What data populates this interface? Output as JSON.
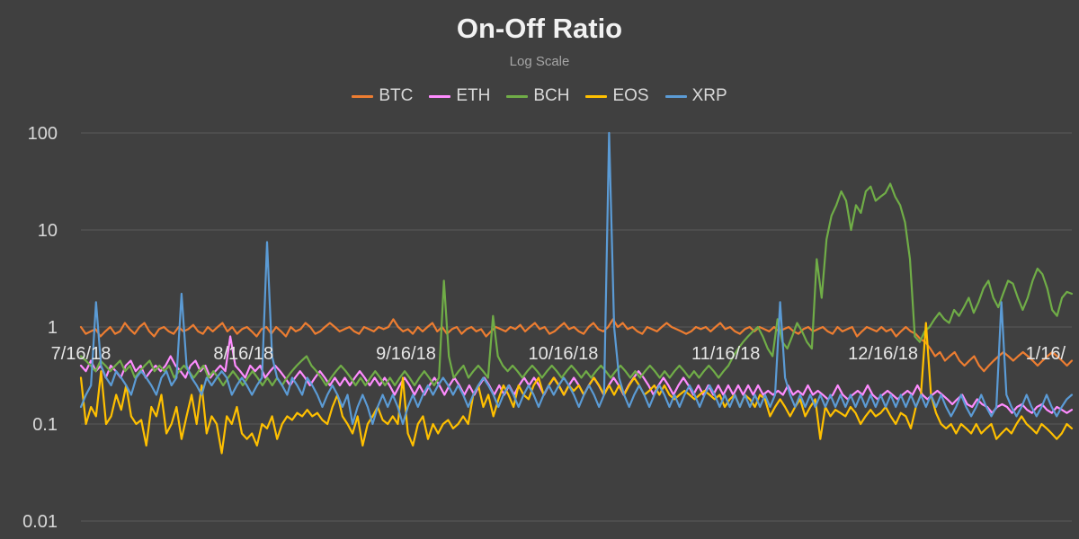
{
  "chart_data": {
    "type": "line",
    "title": "On-Off Ratio",
    "subtitle": "Log Scale",
    "xlabel": "",
    "ylabel": "",
    "y_scale": "log",
    "ylim": [
      0.01,
      100
    ],
    "y_ticks": [
      "0.01",
      "0.1",
      "1",
      "10",
      "100"
    ],
    "x_ticks": [
      "7/16/18",
      "8/16/18",
      "9/16/18",
      "10/16/18",
      "11/16/18",
      "12/16/18",
      "1/16/"
    ],
    "grid": "horizontal",
    "legend": "top",
    "x_start": "2018-07-16",
    "x_end": "2019-01-21",
    "series": [
      {
        "name": "BTC",
        "color": "#ED7D31",
        "values": [
          1.0,
          0.85,
          0.9,
          0.95,
          0.8,
          0.9,
          1.0,
          0.85,
          0.9,
          1.1,
          0.95,
          0.85,
          1.0,
          1.1,
          0.9,
          0.8,
          0.95,
          1.0,
          0.9,
          0.85,
          1.0,
          0.9,
          0.95,
          1.05,
          0.9,
          0.85,
          1.0,
          0.9,
          1.0,
          1.1,
          0.9,
          1.0,
          0.85,
          0.95,
          1.0,
          0.9,
          0.8,
          0.95,
          1.0,
          0.85,
          1.0,
          0.9,
          0.8,
          1.0,
          0.9,
          0.95,
          1.1,
          1.0,
          0.85,
          0.9,
          1.0,
          1.1,
          1.0,
          0.9,
          0.95,
          1.0,
          0.9,
          0.85,
          1.0,
          0.95,
          0.9,
          1.0,
          0.95,
          1.0,
          1.2,
          1.0,
          0.9,
          0.95,
          0.85,
          1.0,
          0.9,
          1.0,
          1.1,
          0.9,
          1.0,
          0.85,
          0.95,
          1.0,
          0.85,
          0.95,
          1.0,
          0.9,
          0.95,
          0.8,
          0.9,
          1.0,
          0.95,
          0.9,
          1.0,
          0.95,
          1.05,
          0.9,
          1.0,
          1.1,
          0.95,
          1.0,
          0.85,
          0.9,
          1.0,
          1.1,
          0.95,
          1.0,
          0.9,
          0.85,
          1.0,
          1.1,
          0.95,
          0.9,
          1.0,
          1.2,
          1.0,
          1.1,
          0.95,
          1.0,
          0.9,
          0.85,
          1.0,
          0.95,
          0.9,
          1.0,
          1.1,
          1.0,
          0.95,
          0.9,
          0.85,
          0.9,
          1.0,
          0.95,
          1.0,
          0.9,
          1.0,
          1.1,
          0.95,
          1.0,
          0.9,
          0.85,
          0.95,
          1.0,
          0.9,
          1.0,
          0.95,
          0.9,
          1.0,
          0.9,
          0.95,
          1.0,
          0.9,
          0.85,
          0.95,
          1.0,
          0.9,
          0.95,
          1.0,
          0.9,
          0.85,
          1.0,
          0.9,
          0.95,
          1.0,
          0.8,
          0.9,
          1.0,
          0.95,
          0.9,
          1.0,
          0.9,
          0.95,
          0.8,
          0.9,
          1.0,
          0.9,
          0.85,
          0.75,
          0.7,
          0.6,
          0.5,
          0.55,
          0.45,
          0.5,
          0.55,
          0.45,
          0.4,
          0.45,
          0.5,
          0.4,
          0.35,
          0.4,
          0.45,
          0.5,
          0.55,
          0.5,
          0.45,
          0.5,
          0.55,
          0.5,
          0.45,
          0.4,
          0.45,
          0.5,
          0.55,
          0.5,
          0.45,
          0.4,
          0.45
        ]
      },
      {
        "name": "ETH",
        "color": "#FF8CFF",
        "values": [
          0.4,
          0.35,
          0.45,
          0.35,
          0.4,
          0.3,
          0.4,
          0.35,
          0.3,
          0.4,
          0.45,
          0.35,
          0.4,
          0.3,
          0.35,
          0.4,
          0.35,
          0.4,
          0.5,
          0.4,
          0.35,
          0.3,
          0.4,
          0.45,
          0.35,
          0.4,
          0.3,
          0.35,
          0.4,
          0.35,
          0.8,
          0.4,
          0.35,
          0.3,
          0.4,
          0.35,
          0.4,
          0.3,
          0.35,
          0.4,
          0.35,
          0.3,
          0.25,
          0.3,
          0.35,
          0.3,
          0.25,
          0.3,
          0.35,
          0.3,
          0.25,
          0.3,
          0.25,
          0.3,
          0.25,
          0.3,
          0.35,
          0.3,
          0.25,
          0.3,
          0.25,
          0.3,
          0.25,
          0.2,
          0.25,
          0.3,
          0.25,
          0.2,
          0.25,
          0.2,
          0.25,
          0.3,
          0.25,
          0.2,
          0.25,
          0.3,
          0.25,
          0.2,
          0.25,
          0.2,
          0.25,
          0.3,
          0.25,
          0.2,
          0.25,
          0.2,
          0.25,
          0.2,
          0.25,
          0.3,
          0.25,
          0.3,
          0.25,
          0.2,
          0.25,
          0.3,
          0.25,
          0.2,
          0.25,
          0.3,
          0.25,
          0.2,
          0.25,
          0.3,
          0.25,
          0.2,
          0.25,
          0.3,
          0.25,
          0.2,
          0.25,
          0.3,
          0.35,
          0.3,
          0.25,
          0.2,
          0.25,
          0.3,
          0.25,
          0.2,
          0.25,
          0.3,
          0.25,
          0.2,
          0.25,
          0.2,
          0.25,
          0.2,
          0.25,
          0.2,
          0.25,
          0.2,
          0.25,
          0.2,
          0.25,
          0.2,
          0.25,
          0.2,
          0.22,
          0.2,
          0.22,
          0.2,
          0.25,
          0.2,
          0.22,
          0.2,
          0.25,
          0.2,
          0.22,
          0.2,
          0.18,
          0.2,
          0.25,
          0.2,
          0.18,
          0.2,
          0.22,
          0.2,
          0.25,
          0.2,
          0.18,
          0.2,
          0.22,
          0.2,
          0.18,
          0.2,
          0.22,
          0.2,
          0.25,
          0.2,
          0.18,
          0.2,
          0.22,
          0.2,
          0.18,
          0.16,
          0.18,
          0.2,
          0.16,
          0.15,
          0.18,
          0.16,
          0.15,
          0.13,
          0.15,
          0.16,
          0.15,
          0.13,
          0.15,
          0.16,
          0.14,
          0.13,
          0.15,
          0.16,
          0.14,
          0.13,
          0.15,
          0.14,
          0.13,
          0.14
        ]
      },
      {
        "name": "BCH",
        "color": "#70AD47",
        "values": [
          0.5,
          0.45,
          0.4,
          0.35,
          0.45,
          0.4,
          0.35,
          0.4,
          0.45,
          0.35,
          0.4,
          0.3,
          0.35,
          0.4,
          0.45,
          0.35,
          0.4,
          0.35,
          0.4,
          0.3,
          0.35,
          0.4,
          0.35,
          0.3,
          0.35,
          0.4,
          0.3,
          0.35,
          0.3,
          0.25,
          0.3,
          0.35,
          0.3,
          0.25,
          0.3,
          0.35,
          0.3,
          0.25,
          0.3,
          0.25,
          0.3,
          0.25,
          0.3,
          0.35,
          0.4,
          0.45,
          0.5,
          0.4,
          0.35,
          0.3,
          0.25,
          0.3,
          0.35,
          0.4,
          0.35,
          0.3,
          0.25,
          0.3,
          0.25,
          0.3,
          0.35,
          0.3,
          0.25,
          0.3,
          0.25,
          0.3,
          0.35,
          0.3,
          0.25,
          0.3,
          0.35,
          0.3,
          0.25,
          0.3,
          3.0,
          0.5,
          0.3,
          0.35,
          0.4,
          0.3,
          0.35,
          0.4,
          0.35,
          0.3,
          1.3,
          0.5,
          0.4,
          0.35,
          0.4,
          0.35,
          0.3,
          0.35,
          0.4,
          0.35,
          0.3,
          0.35,
          0.4,
          0.35,
          0.3,
          0.35,
          0.4,
          0.35,
          0.3,
          0.35,
          0.3,
          0.35,
          0.4,
          0.35,
          0.3,
          0.35,
          0.4,
          0.35,
          0.3,
          0.35,
          0.3,
          0.35,
          0.4,
          0.35,
          0.3,
          0.35,
          0.3,
          0.35,
          0.4,
          0.35,
          0.3,
          0.35,
          0.3,
          0.35,
          0.4,
          0.35,
          0.3,
          0.35,
          0.4,
          0.5,
          0.6,
          0.7,
          0.8,
          0.9,
          1.0,
          0.8,
          0.6,
          0.5,
          1.2,
          0.7,
          0.6,
          0.8,
          1.1,
          0.9,
          0.7,
          0.6,
          5.0,
          2.0,
          8.0,
          14.0,
          18.0,
          25.0,
          20.0,
          10.0,
          18.0,
          15.0,
          25.0,
          28.0,
          20.0,
          22.0,
          24.0,
          30.0,
          22.0,
          18.0,
          12.0,
          5.0,
          0.8,
          0.7,
          0.9,
          1.0,
          1.2,
          1.4,
          1.2,
          1.1,
          1.5,
          1.3,
          1.6,
          2.0,
          1.4,
          1.8,
          2.5,
          3.0,
          2.0,
          1.6,
          2.2,
          3.0,
          2.8,
          2.0,
          1.5,
          2.0,
          3.0,
          4.0,
          3.5,
          2.5,
          1.5,
          1.3,
          2.0,
          2.3,
          2.2
        ]
      },
      {
        "name": "EOS",
        "color": "#FFC000",
        "values": [
          0.3,
          0.1,
          0.15,
          0.12,
          0.35,
          0.1,
          0.12,
          0.2,
          0.14,
          0.25,
          0.12,
          0.1,
          0.11,
          0.06,
          0.15,
          0.12,
          0.2,
          0.08,
          0.1,
          0.15,
          0.07,
          0.12,
          0.2,
          0.1,
          0.25,
          0.08,
          0.12,
          0.1,
          0.05,
          0.12,
          0.1,
          0.15,
          0.08,
          0.07,
          0.08,
          0.06,
          0.1,
          0.09,
          0.12,
          0.07,
          0.1,
          0.12,
          0.11,
          0.13,
          0.12,
          0.14,
          0.12,
          0.13,
          0.11,
          0.1,
          0.15,
          0.2,
          0.12,
          0.1,
          0.08,
          0.12,
          0.06,
          0.1,
          0.12,
          0.15,
          0.11,
          0.1,
          0.12,
          0.1,
          0.3,
          0.08,
          0.06,
          0.1,
          0.12,
          0.07,
          0.1,
          0.08,
          0.1,
          0.11,
          0.09,
          0.1,
          0.12,
          0.1,
          0.2,
          0.25,
          0.15,
          0.2,
          0.12,
          0.18,
          0.25,
          0.2,
          0.15,
          0.25,
          0.2,
          0.18,
          0.25,
          0.3,
          0.2,
          0.25,
          0.3,
          0.25,
          0.2,
          0.25,
          0.22,
          0.25,
          0.2,
          0.25,
          0.3,
          0.25,
          0.2,
          0.25,
          0.2,
          0.25,
          0.2,
          0.25,
          0.3,
          0.25,
          0.2,
          0.22,
          0.25,
          0.2,
          0.25,
          0.2,
          0.18,
          0.2,
          0.22,
          0.2,
          0.18,
          0.2,
          0.22,
          0.2,
          0.18,
          0.2,
          0.15,
          0.18,
          0.2,
          0.15,
          0.2,
          0.18,
          0.15,
          0.2,
          0.18,
          0.12,
          0.15,
          0.18,
          0.15,
          0.12,
          0.15,
          0.18,
          0.12,
          0.15,
          0.18,
          0.07,
          0.15,
          0.12,
          0.14,
          0.13,
          0.12,
          0.15,
          0.13,
          0.1,
          0.12,
          0.14,
          0.12,
          0.13,
          0.15,
          0.12,
          0.1,
          0.13,
          0.12,
          0.09,
          0.15,
          0.2,
          1.1,
          0.2,
          0.13,
          0.1,
          0.09,
          0.1,
          0.08,
          0.1,
          0.09,
          0.08,
          0.1,
          0.08,
          0.09,
          0.1,
          0.07,
          0.08,
          0.09,
          0.08,
          0.1,
          0.12,
          0.1,
          0.09,
          0.08,
          0.1,
          0.09,
          0.08,
          0.07,
          0.08,
          0.1,
          0.09
        ]
      },
      {
        "name": "XRP",
        "color": "#5B9BD5",
        "values": [
          0.15,
          0.2,
          0.25,
          1.8,
          0.4,
          0.3,
          0.25,
          0.35,
          0.3,
          0.25,
          0.2,
          0.3,
          0.35,
          0.3,
          0.25,
          0.2,
          0.3,
          0.35,
          0.25,
          0.3,
          2.2,
          0.4,
          0.3,
          0.25,
          0.2,
          0.3,
          0.25,
          0.3,
          0.35,
          0.3,
          0.2,
          0.25,
          0.3,
          0.25,
          0.2,
          0.25,
          0.3,
          7.5,
          0.5,
          0.3,
          0.25,
          0.2,
          0.3,
          0.25,
          0.2,
          0.3,
          0.25,
          0.2,
          0.15,
          0.2,
          0.25,
          0.2,
          0.15,
          0.2,
          0.1,
          0.15,
          0.2,
          0.15,
          0.1,
          0.15,
          0.2,
          0.15,
          0.2,
          0.15,
          0.1,
          0.15,
          0.2,
          0.15,
          0.2,
          0.25,
          0.2,
          0.25,
          0.3,
          0.25,
          0.2,
          0.25,
          0.2,
          0.15,
          0.2,
          0.25,
          0.3,
          0.25,
          0.2,
          0.15,
          0.2,
          0.25,
          0.2,
          0.15,
          0.2,
          0.25,
          0.2,
          0.15,
          0.2,
          0.25,
          0.2,
          0.25,
          0.3,
          0.25,
          0.2,
          0.15,
          0.2,
          0.25,
          0.2,
          0.15,
          0.2,
          100.0,
          1.0,
          0.3,
          0.2,
          0.15,
          0.2,
          0.25,
          0.2,
          0.15,
          0.2,
          0.25,
          0.2,
          0.15,
          0.2,
          0.15,
          0.2,
          0.25,
          0.2,
          0.15,
          0.2,
          0.25,
          0.2,
          0.15,
          0.2,
          0.15,
          0.2,
          0.15,
          0.2,
          0.15,
          0.2,
          0.15,
          0.2,
          0.15,
          0.2,
          1.8,
          0.3,
          0.2,
          0.15,
          0.2,
          0.15,
          0.2,
          0.15,
          0.2,
          0.15,
          0.2,
          0.15,
          0.2,
          0.15,
          0.2,
          0.15,
          0.2,
          0.15,
          0.2,
          0.15,
          0.2,
          0.15,
          0.2,
          0.15,
          0.2,
          0.15,
          0.2,
          0.15,
          0.2,
          0.15,
          0.2,
          0.15,
          0.2,
          0.15,
          0.12,
          0.15,
          0.2,
          0.15,
          0.12,
          0.15,
          0.2,
          0.15,
          0.12,
          0.15,
          1.8,
          0.2,
          0.15,
          0.12,
          0.15,
          0.2,
          0.15,
          0.12,
          0.15,
          0.2,
          0.15,
          0.12,
          0.15,
          0.18,
          0.2
        ]
      }
    ]
  }
}
